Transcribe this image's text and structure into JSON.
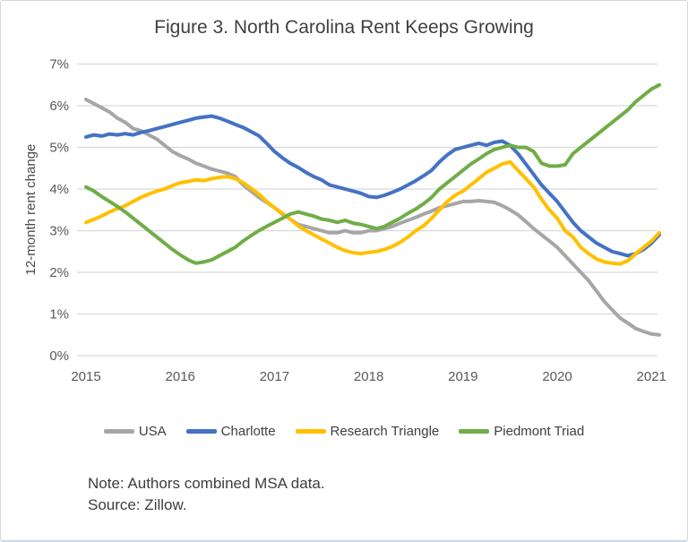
{
  "figure": {
    "title": "Figure 3. North Carolina Rent Keeps Growing",
    "note": "Note: Authors combined MSA data.",
    "source": "Source: Zillow."
  },
  "chart_data": {
    "type": "line",
    "title": "Figure 3. North Carolina Rent Keeps Growing",
    "xlabel": "",
    "ylabel": "12-month rent change",
    "ylim": [
      0,
      7
    ],
    "y_tick_labels": [
      "0%",
      "1%",
      "2%",
      "3%",
      "4%",
      "5%",
      "6%",
      "7%"
    ],
    "x_tick_labels": [
      "2015",
      "2016",
      "2017",
      "2018",
      "2019",
      "2020",
      "2021"
    ],
    "x_frequency": "monthly",
    "x_range": "2015-01 to 2021-02",
    "grid": "horizontal",
    "legend_position": "bottom",
    "style": {
      "grid_color": "#D9D9D9",
      "axis_text_color": "#595959",
      "title_text_color": "#404040"
    },
    "series": [
      {
        "name": "USA",
        "color": "#A6A6A6",
        "values": [
          6.15,
          6.05,
          5.95,
          5.85,
          5.7,
          5.6,
          5.45,
          5.4,
          5.3,
          5.2,
          5.05,
          4.9,
          4.8,
          4.72,
          4.62,
          4.55,
          4.48,
          4.43,
          4.38,
          4.3,
          4.1,
          3.95,
          3.8,
          3.68,
          3.55,
          3.4,
          3.28,
          3.15,
          3.1,
          3.05,
          3.0,
          2.95,
          2.95,
          3.0,
          2.95,
          2.95,
          3.0,
          3.0,
          3.05,
          3.1,
          3.18,
          3.25,
          3.32,
          3.4,
          3.47,
          3.55,
          3.6,
          3.65,
          3.7,
          3.7,
          3.72,
          3.7,
          3.68,
          3.6,
          3.5,
          3.38,
          3.22,
          3.05,
          2.9,
          2.75,
          2.6,
          2.4,
          2.2,
          2.0,
          1.8,
          1.55,
          1.3,
          1.1,
          0.9,
          0.78,
          0.65,
          0.58,
          0.52,
          0.5
        ]
      },
      {
        "name": "Charlotte",
        "color": "#4472C4",
        "values": [
          5.25,
          5.3,
          5.27,
          5.32,
          5.3,
          5.33,
          5.3,
          5.36,
          5.4,
          5.45,
          5.5,
          5.55,
          5.6,
          5.65,
          5.7,
          5.73,
          5.75,
          5.7,
          5.63,
          5.55,
          5.48,
          5.38,
          5.28,
          5.1,
          4.9,
          4.75,
          4.62,
          4.52,
          4.4,
          4.3,
          4.22,
          4.1,
          4.05,
          4.0,
          3.95,
          3.9,
          3.82,
          3.8,
          3.85,
          3.92,
          4.0,
          4.1,
          4.2,
          4.32,
          4.45,
          4.65,
          4.82,
          4.95,
          5.0,
          5.05,
          5.1,
          5.05,
          5.12,
          5.15,
          5.05,
          4.85,
          4.6,
          4.35,
          4.1,
          3.9,
          3.7,
          3.45,
          3.2,
          3.0,
          2.85,
          2.7,
          2.6,
          2.5,
          2.45,
          2.4,
          2.45,
          2.55,
          2.7,
          2.9
        ]
      },
      {
        "name": "Research Triangle",
        "color": "#FFC000",
        "values": [
          3.2,
          3.27,
          3.35,
          3.45,
          3.53,
          3.6,
          3.7,
          3.8,
          3.88,
          3.95,
          4.0,
          4.08,
          4.15,
          4.18,
          4.22,
          4.2,
          4.25,
          4.28,
          4.3,
          4.25,
          4.15,
          4.02,
          3.88,
          3.7,
          3.55,
          3.42,
          3.28,
          3.12,
          3.0,
          2.9,
          2.8,
          2.7,
          2.6,
          2.52,
          2.47,
          2.45,
          2.48,
          2.5,
          2.55,
          2.62,
          2.72,
          2.85,
          3.0,
          3.12,
          3.3,
          3.5,
          3.7,
          3.85,
          3.95,
          4.1,
          4.25,
          4.4,
          4.5,
          4.6,
          4.65,
          4.45,
          4.25,
          4.05,
          3.75,
          3.5,
          3.3,
          3.0,
          2.85,
          2.6,
          2.45,
          2.32,
          2.25,
          2.22,
          2.2,
          2.28,
          2.45,
          2.6,
          2.75,
          2.95
        ]
      },
      {
        "name": "Piedmont Triad",
        "color": "#70AD47",
        "values": [
          4.05,
          3.95,
          3.82,
          3.7,
          3.58,
          3.45,
          3.3,
          3.15,
          3.0,
          2.85,
          2.7,
          2.55,
          2.42,
          2.3,
          2.22,
          2.25,
          2.3,
          2.4,
          2.5,
          2.6,
          2.75,
          2.88,
          3.0,
          3.1,
          3.2,
          3.3,
          3.4,
          3.45,
          3.4,
          3.35,
          3.28,
          3.25,
          3.2,
          3.25,
          3.18,
          3.15,
          3.1,
          3.05,
          3.1,
          3.2,
          3.3,
          3.42,
          3.52,
          3.65,
          3.8,
          4.0,
          4.15,
          4.3,
          4.45,
          4.6,
          4.72,
          4.85,
          4.95,
          5.0,
          5.05,
          5.0,
          5.0,
          4.9,
          4.62,
          4.55,
          4.55,
          4.58,
          4.85,
          5.0,
          5.15,
          5.3,
          5.45,
          5.6,
          5.75,
          5.9,
          6.1,
          6.25,
          6.4,
          6.5
        ]
      }
    ]
  }
}
